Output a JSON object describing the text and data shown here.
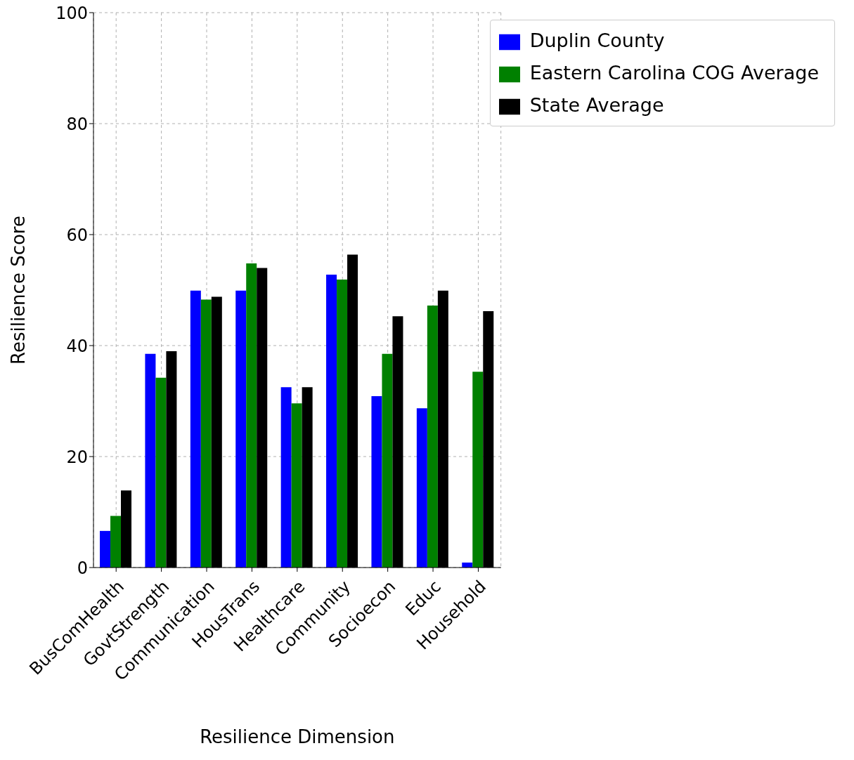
{
  "chart_data": {
    "type": "bar",
    "xlabel": "Resilience Dimension",
    "ylabel": "Resilience Score",
    "categories": [
      "BusComHealth",
      "GovtStrength",
      "Communication",
      "HousTrans",
      "Healthcare",
      "Community",
      "Socioecon",
      "Educ",
      "Household"
    ],
    "series": [
      {
        "name": "Duplin County",
        "color": "#0000ff",
        "values": [
          6.6,
          38.5,
          49.9,
          49.9,
          32.5,
          52.8,
          30.9,
          28.7,
          0.9
        ]
      },
      {
        "name": "Eastern Carolina COG Average",
        "color": "#008000",
        "values": [
          9.3,
          34.2,
          48.3,
          54.8,
          29.6,
          51.9,
          38.5,
          47.2,
          35.3
        ]
      },
      {
        "name": "State Average",
        "color": "#000000",
        "values": [
          13.9,
          39.0,
          48.8,
          54.0,
          32.5,
          56.4,
          45.3,
          49.9,
          46.2
        ]
      }
    ],
    "ylim": [
      0,
      100
    ],
    "yticks": [
      0,
      20,
      40,
      60,
      80,
      100
    ],
    "grid": true,
    "legend": "top right"
  }
}
